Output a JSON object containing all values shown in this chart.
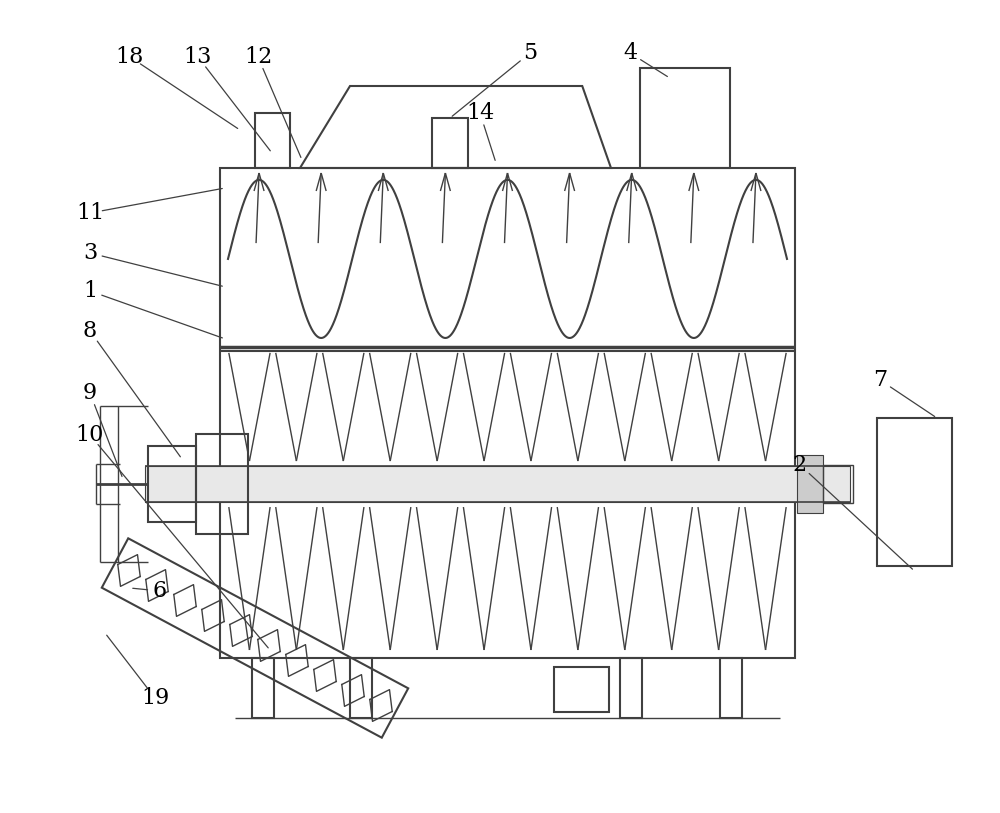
{
  "bg_color": "#ffffff",
  "line_color": "#404040",
  "label_color": "#000000",
  "fig_width": 10.0,
  "fig_height": 8.13,
  "dpi": 100
}
